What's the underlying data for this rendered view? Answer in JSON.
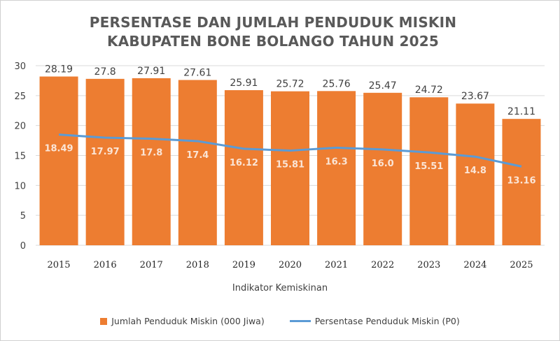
{
  "chart_data": {
    "type": "bar+line",
    "title_lines": [
      "PERSENTASE DAN JUMLAH PENDUDUK MISKIN",
      "KABUPATEN BONE BOLANGO TAHUN 2025"
    ],
    "categories": [
      "2015",
      "2016",
      "2017",
      "2018",
      "2019",
      "2020",
      "2021",
      "2022",
      "2023",
      "2024",
      "2025"
    ],
    "series": [
      {
        "name": "Jumlah Penduduk Miskin (000 Jiwa)",
        "type": "bar",
        "color": "#ED7D31",
        "values": [
          28.19,
          27.8,
          27.91,
          27.61,
          25.91,
          25.72,
          25.76,
          25.47,
          24.72,
          23.67,
          21.11
        ],
        "labels": [
          "28.19",
          "27.8",
          "27.91",
          "27.61",
          "25.91",
          "25.72",
          "25.76",
          "25.47",
          "24.72",
          "23.67",
          "21.11"
        ]
      },
      {
        "name": "Persentase Penduduk Miskin (P0)",
        "type": "line",
        "color": "#5B9BD5",
        "values": [
          18.49,
          17.97,
          17.8,
          17.4,
          16.12,
          15.81,
          16.3,
          16.0,
          15.51,
          14.8,
          13.16
        ],
        "labels": [
          "18.49",
          "17.97",
          "17.8",
          "17.4",
          "16.12",
          "15.81",
          "16.3",
          "16.0",
          "15.51",
          "14.8",
          "13.16"
        ]
      }
    ],
    "xlabel": "Indikator Kemiskinan",
    "ylabel": "",
    "ylim": [
      0,
      30
    ],
    "yticks": [
      "0",
      "5",
      "10",
      "15",
      "20",
      "25",
      "30"
    ],
    "grid": true,
    "legend": "bottom"
  }
}
